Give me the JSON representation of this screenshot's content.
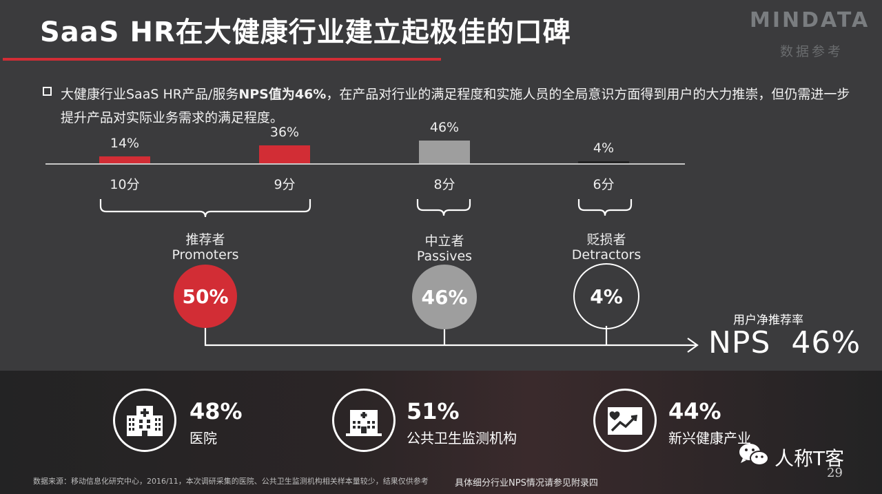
{
  "header": {
    "title": "SaaS HR在大健康行业建立起极佳的口碑",
    "logo_text": "MINDATA",
    "logo_sub": "数据参考"
  },
  "summary": {
    "part1": "大健康行业SaaS HR产品/服务",
    "highlight": "NPS值为46%",
    "part2": "，在产品对行业的满足程度和实施人员的全局意识方面得到用户的大力推崇，但仍需进一步提升产品对实际业务需求的满足程度。"
  },
  "chart_data": {
    "type": "bar",
    "categories": [
      "10分",
      "9分",
      "8分",
      "6分"
    ],
    "values": [
      14,
      36,
      46,
      4
    ],
    "value_labels": [
      "14%",
      "36%",
      "46%",
      "4%"
    ],
    "colors": [
      "#d22d35",
      "#d22d35",
      "#9e9e9e",
      "#222222"
    ],
    "ylim": [
      0,
      100
    ],
    "unit": "%"
  },
  "groups": [
    {
      "cn": "推荐者",
      "en": "Promoters",
      "value": "50%",
      "fill": "#d22d35"
    },
    {
      "cn": "中立者",
      "en": "Passives",
      "value": "46%",
      "fill": "#9e9e9e"
    },
    {
      "cn": "贬损者",
      "en": "Detractors",
      "value": "4%",
      "fill": "none"
    }
  ],
  "nps": {
    "caption": "用户净推荐率",
    "label": "NPS",
    "value": "46%"
  },
  "stats": [
    {
      "value": "48%",
      "label": "医院",
      "icon": "hospital-icon"
    },
    {
      "value": "51%",
      "label": "公共卫生监测机构",
      "icon": "health-building-icon"
    },
    {
      "value": "44%",
      "label": "新兴健康产业",
      "icon": "heart-trend-icon"
    }
  ],
  "footer": {
    "source": "数据来源：移动信息化研究中心，2016/11，本次调研采集的医院、公共卫生监测机构相关样本量较少，结果仅供参考",
    "appendix": "具体细分行业NPS情况请参见附录四",
    "brand": "人称T客",
    "page": "29"
  }
}
